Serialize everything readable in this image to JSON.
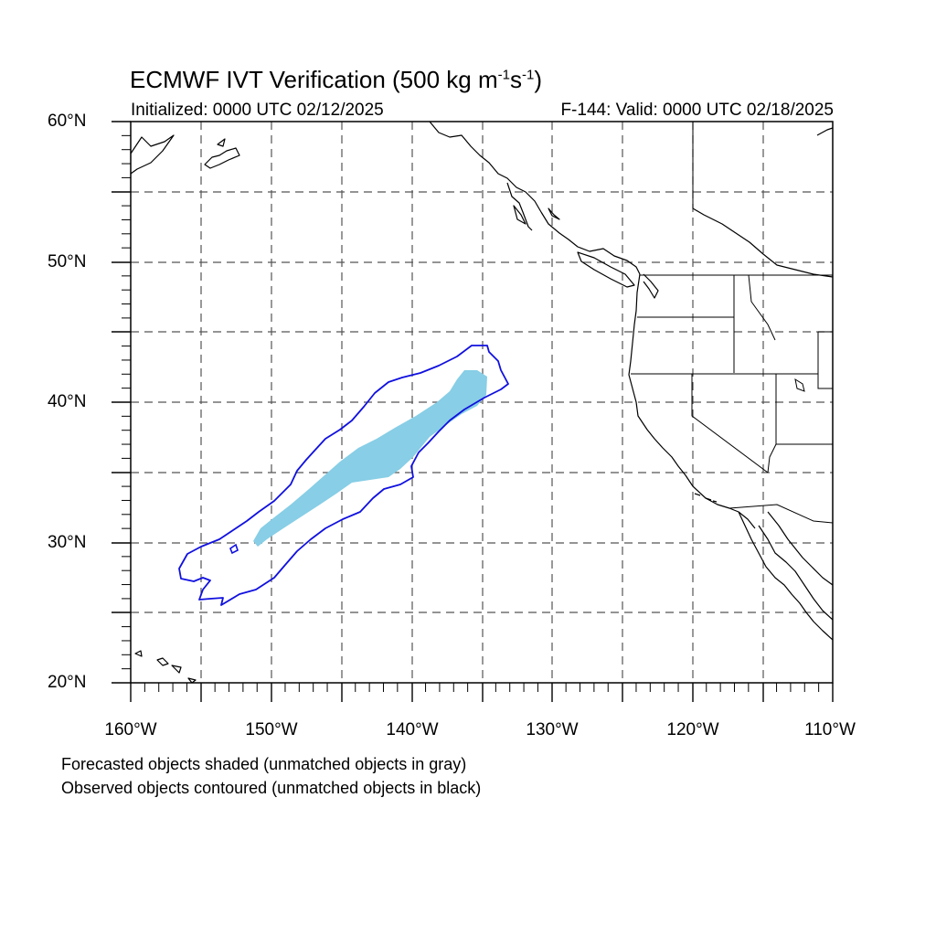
{
  "header": {
    "title_main": "ECMWF IVT Verification (500 kg m",
    "title_sup1": "-1",
    "title_mid": "s",
    "title_sup2": "-1",
    "title_end": ")",
    "initialized": "Initialized: 0000 UTC 02/12/2025",
    "valid": "F-144: Valid: 0000 UTC 02/18/2025"
  },
  "axes": {
    "lat_labels": [
      "60°N",
      "50°N",
      "40°N",
      "30°N",
      "20°N"
    ],
    "lon_labels": [
      "160°W",
      "150°W",
      "140°W",
      "130°W",
      "120°W",
      "110°W"
    ],
    "lat_range": [
      20,
      60
    ],
    "lon_range": [
      -160,
      -110
    ],
    "grid": "dashed every 5 degrees"
  },
  "legend": {
    "line1": "Forecasted objects shaded (unmatched objects in gray)",
    "line2": "Observed objects contoured (unmatched objects in black)"
  },
  "colors": {
    "forecast_fill": "#87CEE6",
    "observed_contour": "#1010E0",
    "coastline": "#000000",
    "grid": "#555555"
  },
  "map_layers": {
    "forecast_object": "shaded",
    "observed_object": "contoured",
    "coastlines": "shown",
    "political_boundaries": "shown"
  }
}
